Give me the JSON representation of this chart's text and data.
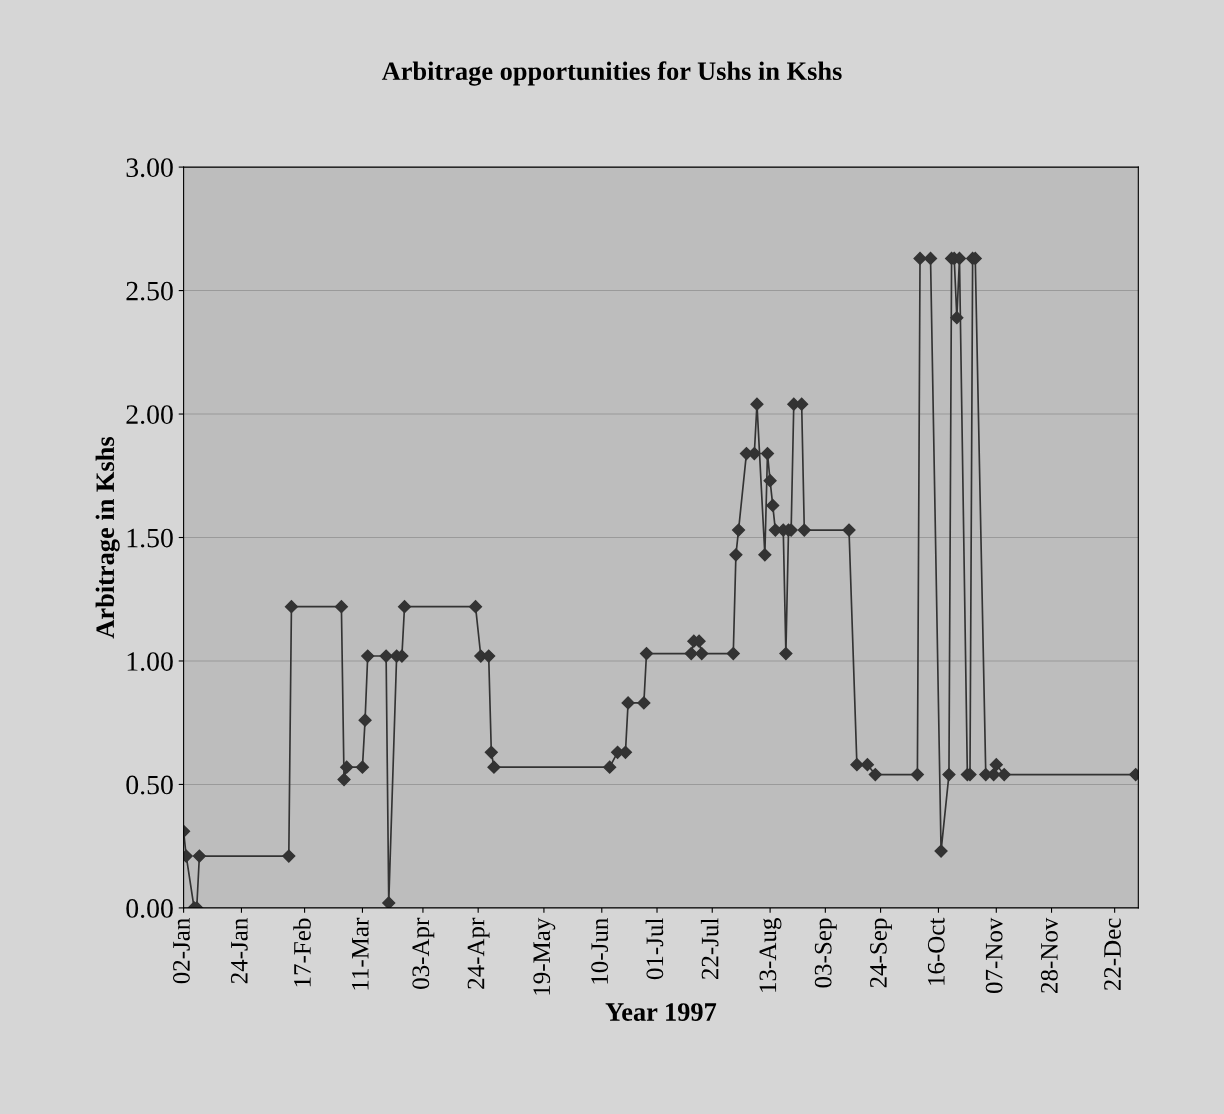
{
  "chart_data": {
    "type": "line",
    "title": "Arbitrage opportunities for Ushs in Kshs",
    "xlabel": "Year 1997",
    "ylabel": "Arbitrage in Kshs",
    "x": [
      "1997-01-02",
      "1997-01-03",
      "1997-01-06",
      "1997-01-07",
      "1997-01-08",
      "1997-02-11",
      "1997-02-12",
      "1997-03-03",
      "1997-03-04",
      "1997-03-05",
      "1997-03-11",
      "1997-03-12",
      "1997-03-13",
      "1997-03-20",
      "1997-03-21",
      "1997-03-24",
      "1997-03-26",
      "1997-03-27",
      "1997-04-23",
      "1997-04-25",
      "1997-04-28",
      "1997-04-29",
      "1997-04-30",
      "1997-06-13",
      "1997-06-16",
      "1997-06-19",
      "1997-06-20",
      "1997-06-26",
      "1997-06-27",
      "1997-07-14",
      "1997-07-15",
      "1997-07-17",
      "1997-07-18",
      "1997-07-30",
      "1997-07-31",
      "1997-08-01",
      "1997-08-04",
      "1997-08-07",
      "1997-08-08",
      "1997-08-11",
      "1997-08-12",
      "1997-08-13",
      "1997-08-14",
      "1997-08-15",
      "1997-08-18",
      "1997-08-19",
      "1997-08-20",
      "1997-08-21",
      "1997-08-22",
      "1997-08-25",
      "1997-08-26",
      "1997-09-12",
      "1997-09-15",
      "1997-09-19",
      "1997-09-22",
      "1997-10-08",
      "1997-10-09",
      "1997-10-13",
      "1997-10-17",
      "1997-10-20",
      "1997-10-21",
      "1997-10-22",
      "1997-10-23",
      "1997-10-24",
      "1997-10-27",
      "1997-10-28",
      "1997-10-29",
      "1997-10-30",
      "1997-11-03",
      "1997-11-06",
      "1997-11-07",
      "1997-11-10",
      "1997-12-30"
    ],
    "series": [
      {
        "color": "#333333",
        "values": [
          0.31,
          0.21,
          0.0,
          0.0,
          0.21,
          0.21,
          1.22,
          1.22,
          0.52,
          0.57,
          0.57,
          0.76,
          1.02,
          1.02,
          0.02,
          1.02,
          1.02,
          1.22,
          1.22,
          1.02,
          1.02,
          0.63,
          0.57,
          0.57,
          0.63,
          0.63,
          0.83,
          0.83,
          1.03,
          1.03,
          1.08,
          1.08,
          1.03,
          1.03,
          1.43,
          1.53,
          1.84,
          1.84,
          2.04,
          1.43,
          1.84,
          1.73,
          1.63,
          1.53,
          1.53,
          1.03,
          1.53,
          1.53,
          2.04,
          2.04,
          1.53,
          1.53,
          0.58,
          0.58,
          0.54,
          0.54,
          2.63,
          2.63,
          0.23,
          0.54,
          2.63,
          2.63,
          2.39,
          2.63,
          0.54,
          0.54,
          2.63,
          2.63,
          0.54,
          0.54,
          0.58,
          0.54,
          0.54
        ]
      }
    ],
    "xlim": [
      "1997-01-02",
      "1997-12-31"
    ],
    "xticks": [
      {
        "value": "1997-01-02",
        "label": "02-Jan"
      },
      {
        "value": "1997-01-24",
        "label": "24-Jan"
      },
      {
        "value": "1997-02-17",
        "label": "17-Feb"
      },
      {
        "value": "1997-03-11",
        "label": "11-Mar"
      },
      {
        "value": "1997-04-03",
        "label": "03-Apr"
      },
      {
        "value": "1997-04-24",
        "label": "24-Apr"
      },
      {
        "value": "1997-05-19",
        "label": "19-May"
      },
      {
        "value": "1997-06-10",
        "label": "10-Jun"
      },
      {
        "value": "1997-07-01",
        "label": "01-Jul"
      },
      {
        "value": "1997-07-22",
        "label": "22-Jul"
      },
      {
        "value": "1997-08-13",
        "label": "13-Aug"
      },
      {
        "value": "1997-09-03",
        "label": "03-Sep"
      },
      {
        "value": "1997-09-24",
        "label": "24-Sep"
      },
      {
        "value": "1997-10-16",
        "label": "16-Oct"
      },
      {
        "value": "1997-11-07",
        "label": "07-Nov"
      },
      {
        "value": "1997-11-28",
        "label": "28-Nov"
      },
      {
        "value": "1997-12-22",
        "label": "22-Dec"
      }
    ],
    "ylim": [
      0,
      3
    ],
    "yticks": [
      {
        "value": 0,
        "label": "0.00"
      },
      {
        "value": 0.5,
        "label": "0.50"
      },
      {
        "value": 1,
        "label": "1.00"
      },
      {
        "value": 1.5,
        "label": "1.50"
      },
      {
        "value": 2,
        "label": "2.00"
      },
      {
        "value": 2.5,
        "label": "2.50"
      },
      {
        "value": 3,
        "label": "3.00"
      }
    ],
    "grid": "y",
    "legend": false,
    "marker": "diamond",
    "line_style": "solid"
  }
}
